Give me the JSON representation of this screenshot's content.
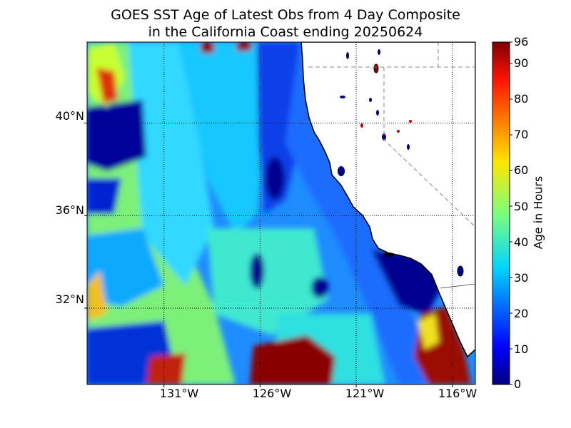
{
  "title": {
    "line1": "GOES SST Age of Latest Obs from 4 Day Composite",
    "line2": "in the California Coast ending 20250624"
  },
  "map": {
    "lat_range": [
      28.7,
      43.5
    ],
    "lon_range": [
      -135.0,
      -114.8
    ],
    "lat_ticks": [
      {
        "value": 40,
        "label": "40°N"
      },
      {
        "value": 36,
        "label": "36°N"
      },
      {
        "value": 32,
        "label": "32°N"
      }
    ],
    "lon_ticks": [
      {
        "value": -131,
        "label": "131°W"
      },
      {
        "value": -126,
        "label": "126°W"
      },
      {
        "value": -121,
        "label": "121°W"
      },
      {
        "value": -116,
        "label": "116°W"
      }
    ],
    "land_color": "#ffffff",
    "coast_color": "#000000",
    "grid": "dotted"
  },
  "colorbar": {
    "label": "Age in Hours",
    "min": 0,
    "max": 96,
    "ticks": [
      "0",
      "10",
      "20",
      "30",
      "40",
      "50",
      "60",
      "70",
      "80",
      "90",
      "96"
    ],
    "colormap": "jet"
  }
}
